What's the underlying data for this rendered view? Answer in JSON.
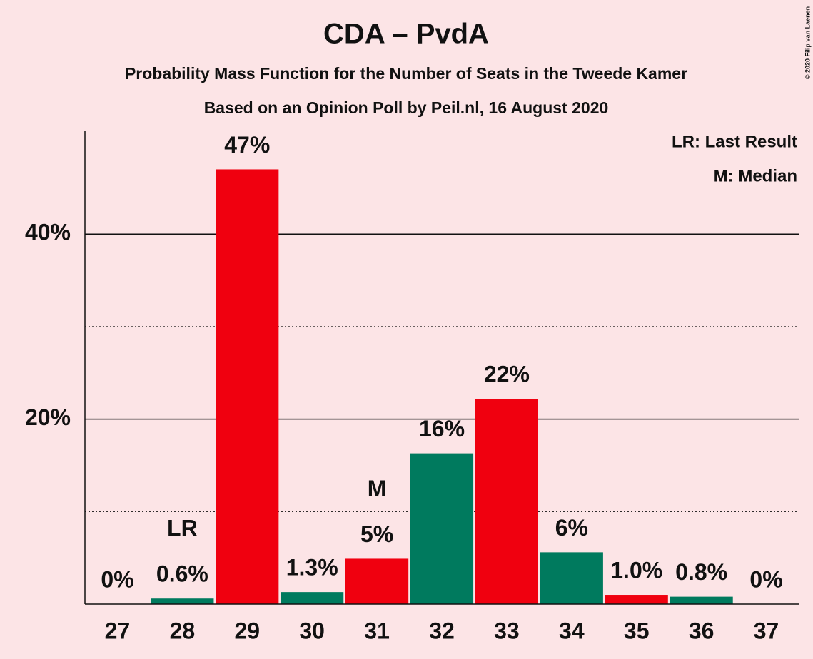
{
  "chart_data": {
    "type": "bar",
    "title": "CDA – PvdA",
    "subtitle": "Probability Mass Function for the Number of Seats in the Tweede Kamer",
    "subtitle2": "Based on an Opinion Poll by Peil.nl, 16 August 2020",
    "categories": [
      "27",
      "28",
      "29",
      "30",
      "31",
      "32",
      "33",
      "34",
      "35",
      "36",
      "37"
    ],
    "values": [
      0,
      0.6,
      47,
      1.3,
      4.9,
      16.3,
      22.2,
      5.6,
      1.0,
      0.8,
      0
    ],
    "value_labels": [
      "0%",
      "0.6%",
      "47%",
      "1.3%",
      "5%",
      "16%",
      "22%",
      "6%",
      "1.0%",
      "0.8%",
      "0%"
    ],
    "colors": [
      "#007a5e",
      "#007a5e",
      "#f0000f",
      "#007a5e",
      "#f0000f",
      "#007a5e",
      "#f0000f",
      "#007a5e",
      "#f0000f",
      "#007a5e",
      "#007a5e"
    ],
    "markers": [
      null,
      "LR",
      null,
      null,
      "M",
      null,
      null,
      null,
      null,
      null,
      null
    ],
    "ylim": [
      0,
      51.2
    ],
    "yticks": [
      {
        "value": 20,
        "label": "20%"
      },
      {
        "value": 40,
        "label": "40%"
      }
    ],
    "minor_yticks": [
      10,
      30
    ],
    "legend": [
      "LR: Last Result",
      "M: Median"
    ],
    "copyright": "© 2020 Filip van Laenen"
  }
}
